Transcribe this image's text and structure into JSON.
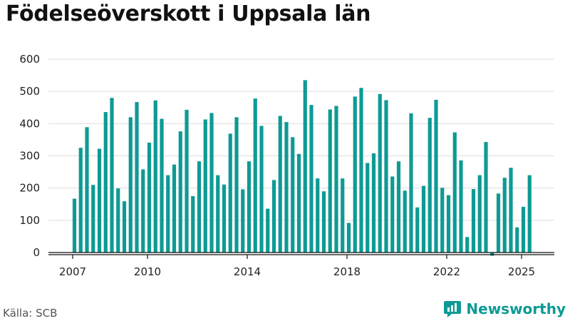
{
  "header": {
    "title": "Födelseöverskott i Uppsala län"
  },
  "footer": {
    "source": "Källa: SCB",
    "brand": "Newsworthy"
  },
  "colors": {
    "bar": "#0e9a94",
    "grid": "#dddddd",
    "axis": "#111111",
    "brand": "#0e9a94"
  },
  "icons": {
    "brand_logo": "newsworthy-logo-icon"
  },
  "chart_data": {
    "type": "bar",
    "title": "Födelseöverskott i Uppsala län",
    "xlabel": "",
    "ylabel": "",
    "ylim": [
      0,
      600
    ],
    "y_ticks": [
      0,
      100,
      200,
      300,
      400,
      500,
      600
    ],
    "x_tick_labels": [
      "2007",
      "2010",
      "2014",
      "2018",
      "2022",
      "2025"
    ],
    "grid": true,
    "frequency": "quarterly",
    "categories": [
      "2007 Q1",
      "2007 Q2",
      "2007 Q3",
      "2007 Q4",
      "2008 Q1",
      "2008 Q2",
      "2008 Q3",
      "2008 Q4",
      "2009 Q1",
      "2009 Q2",
      "2009 Q3",
      "2009 Q4",
      "2010 Q1",
      "2010 Q2",
      "2010 Q3",
      "2010 Q4",
      "2011 Q1",
      "2011 Q2",
      "2011 Q3",
      "2011 Q4",
      "2012 Q1",
      "2012 Q2",
      "2012 Q3",
      "2012 Q4",
      "2013 Q1",
      "2013 Q2",
      "2013 Q3",
      "2013 Q4",
      "2014 Q1",
      "2014 Q2",
      "2014 Q3",
      "2014 Q4",
      "2015 Q1",
      "2015 Q2",
      "2015 Q3",
      "2015 Q4",
      "2016 Q1",
      "2016 Q2",
      "2016 Q3",
      "2016 Q4",
      "2017 Q1",
      "2017 Q2",
      "2017 Q3",
      "2017 Q4",
      "2018 Q1",
      "2018 Q2",
      "2018 Q3",
      "2018 Q4",
      "2019 Q1",
      "2019 Q2",
      "2019 Q3",
      "2019 Q4",
      "2020 Q1",
      "2020 Q2",
      "2020 Q3",
      "2020 Q4",
      "2021 Q1",
      "2021 Q2",
      "2021 Q3",
      "2021 Q4",
      "2022 Q1",
      "2022 Q2",
      "2022 Q3",
      "2022 Q4",
      "2023 Q1",
      "2023 Q2",
      "2023 Q3",
      "2023 Q4",
      "2024 Q1",
      "2024 Q2",
      "2024 Q3",
      "2024 Q4",
      "2025 Q1",
      "2025 Q2",
      "2025 Q3"
    ],
    "values": [
      167,
      325,
      389,
      210,
      322,
      436,
      480,
      199,
      159,
      420,
      467,
      258,
      341,
      472,
      415,
      240,
      273,
      376,
      443,
      175,
      283,
      413,
      433,
      240,
      211,
      369,
      420,
      196,
      283,
      478,
      393,
      136,
      225,
      424,
      405,
      358,
      306,
      535,
      458,
      230,
      190,
      444,
      455,
      230,
      92,
      484,
      511,
      278,
      308,
      492,
      473,
      236,
      283,
      192,
      432,
      140,
      207,
      418,
      474,
      201,
      178,
      373,
      286,
      48,
      197,
      240,
      343,
      -10,
      183,
      232,
      263,
      78,
      142,
      240,
      null
    ]
  }
}
